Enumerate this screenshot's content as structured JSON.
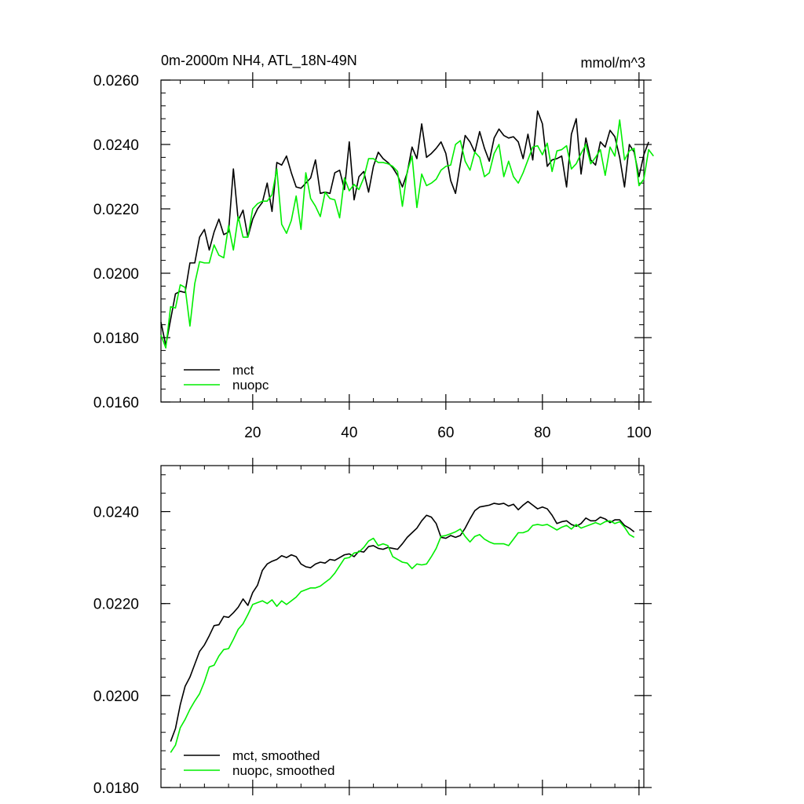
{
  "chart_data": [
    {
      "type": "line",
      "title": "0m-2000m NH4, ATL_18N-49N",
      "units": "mmol/m^3",
      "xlim": [
        1,
        101
      ],
      "ylim": [
        0.016,
        0.026
      ],
      "xticks": [
        20,
        40,
        60,
        80,
        100
      ],
      "xtick_labels": [
        "20",
        "40",
        "60",
        "80",
        "100"
      ],
      "yticks": [
        0.016,
        0.018,
        0.02,
        0.022,
        0.024,
        0.026
      ],
      "ytick_labels": [
        "0.0160",
        "0.0180",
        "0.0200",
        "0.0220",
        "0.0240",
        "0.0260"
      ],
      "grid": false,
      "legend_position": "bottom-left",
      "series": [
        {
          "name": "mct",
          "color": "#000000",
          "x_start": 1,
          "values": [
            0.01848,
            0.01776,
            0.01856,
            0.01936,
            0.01944,
            0.0194,
            0.02032,
            0.02032,
            0.02112,
            0.02136,
            0.02072,
            0.02128,
            0.02168,
            0.0212,
            0.02128,
            0.02324,
            0.02164,
            0.02196,
            0.02112,
            0.02168,
            0.022,
            0.0222,
            0.0228,
            0.02192,
            0.02344,
            0.02336,
            0.02364,
            0.02312,
            0.02268,
            0.02264,
            0.0228,
            0.02296,
            0.02352,
            0.02248,
            0.02252,
            0.02248,
            0.02312,
            0.0232,
            0.0226,
            0.02408,
            0.02228,
            0.023,
            0.02316,
            0.02252,
            0.02332,
            0.02376,
            0.02356,
            0.02344,
            0.02328,
            0.02304,
            0.02268,
            0.02312,
            0.02392,
            0.02356,
            0.02464,
            0.0236,
            0.02372,
            0.02388,
            0.02408,
            0.02372,
            0.02288,
            0.02248,
            0.0234,
            0.02428,
            0.02408,
            0.02376,
            0.0244,
            0.02388,
            0.02348,
            0.0242,
            0.02448,
            0.02428,
            0.0242,
            0.02424,
            0.02408,
            0.02356,
            0.02432,
            0.02352,
            0.02504,
            0.02464,
            0.02332,
            0.02352,
            0.02356,
            0.02364,
            0.02268,
            0.02432,
            0.0248,
            0.02308,
            0.0242,
            0.02352,
            0.02336,
            0.02408,
            0.02392,
            0.02444,
            0.02424,
            0.0236,
            0.02268,
            0.024,
            0.02376,
            0.023,
            0.02368,
            0.02408
          ]
        },
        {
          "name": "nuopc",
          "color": "#00ee00",
          "x_start": 1,
          "values": [
            0.01808,
            0.01768,
            0.01896,
            0.01892,
            0.01964,
            0.01956,
            0.01836,
            0.01968,
            0.02036,
            0.02032,
            0.02032,
            0.02088,
            0.02056,
            0.02048,
            0.02148,
            0.02072,
            0.02176,
            0.02112,
            0.02112,
            0.022,
            0.02216,
            0.02224,
            0.02224,
            0.02244,
            0.02324,
            0.02152,
            0.02124,
            0.02164,
            0.0224,
            0.02136,
            0.02312,
            0.02232,
            0.02208,
            0.02176,
            0.02252,
            0.02232,
            0.02228,
            0.02172,
            0.02296,
            0.02256,
            0.02276,
            0.0226,
            0.02296,
            0.02356,
            0.02356,
            0.02344,
            0.02344,
            0.0234,
            0.02332,
            0.02316,
            0.02208,
            0.02316,
            0.02364,
            0.02204,
            0.02308,
            0.02272,
            0.0228,
            0.02292,
            0.0232,
            0.02332,
            0.02336,
            0.024,
            0.02412,
            0.02348,
            0.0232,
            0.02376,
            0.0236,
            0.023,
            0.02312,
            0.02372,
            0.024,
            0.023,
            0.02348,
            0.023,
            0.0228,
            0.02312,
            0.02352,
            0.02392,
            0.02396,
            0.02368,
            0.02404,
            0.02316,
            0.0238,
            0.02384,
            0.02396,
            0.02324,
            0.0234,
            0.02372,
            0.024,
            0.0234,
            0.0236,
            0.02384,
            0.02304,
            0.02392,
            0.02364,
            0.02476,
            0.02352,
            0.0238,
            0.02388,
            0.02272,
            0.02292,
            0.02384,
            0.02364
          ]
        }
      ]
    },
    {
      "type": "line",
      "xlim": [
        1,
        101
      ],
      "ylim": [
        0.018,
        0.025
      ],
      "xticks": [
        20,
        40,
        60,
        80,
        100
      ],
      "xtick_labels": [],
      "yticks": [
        0.018,
        0.02,
        0.022,
        0.024
      ],
      "ytick_labels": [
        "0.0180",
        "0.0200",
        "0.0220",
        "0.0240"
      ],
      "grid": false,
      "legend_position": "bottom-left",
      "series": [
        {
          "name": "mct, smoothed",
          "color": "#000000",
          "x_start": 3,
          "values": [
            0.019,
            0.01928,
            0.0198,
            0.0202,
            0.0204,
            0.02068,
            0.02096,
            0.0211,
            0.0213,
            0.02152,
            0.02154,
            0.02172,
            0.0217,
            0.0218,
            0.02192,
            0.0221,
            0.02196,
            0.02224,
            0.0224,
            0.02272,
            0.02286,
            0.02292,
            0.02296,
            0.02304,
            0.023,
            0.02306,
            0.02302,
            0.02286,
            0.0228,
            0.02278,
            0.02286,
            0.0229,
            0.02288,
            0.02296,
            0.02294,
            0.023,
            0.02306,
            0.02308,
            0.02302,
            0.02314,
            0.02312,
            0.02324,
            0.02326,
            0.0232,
            0.02318,
            0.02322,
            0.0232,
            0.02318,
            0.0233,
            0.02344,
            0.02354,
            0.02364,
            0.0238,
            0.02392,
            0.02388,
            0.02374,
            0.02344,
            0.02342,
            0.02348,
            0.02344,
            0.02348,
            0.02364,
            0.02384,
            0.02402,
            0.0241,
            0.02412,
            0.02414,
            0.02418,
            0.02416,
            0.02418,
            0.02412,
            0.02416,
            0.02404,
            0.02414,
            0.02422,
            0.02414,
            0.02406,
            0.0241,
            0.02406,
            0.02392,
            0.02374,
            0.02378,
            0.0238,
            0.02372,
            0.02368,
            0.02374,
            0.02386,
            0.0238,
            0.0238,
            0.02388,
            0.02384,
            0.02376,
            0.02382,
            0.02382,
            0.0237,
            0.02364,
            0.02356
          ]
        },
        {
          "name": "nuopc, smoothed",
          "color": "#00ee00",
          "x_start": 3,
          "values": [
            0.01876,
            0.01892,
            0.0193,
            0.01948,
            0.0197,
            0.01988,
            0.02004,
            0.0203,
            0.02062,
            0.02066,
            0.02086,
            0.021,
            0.02102,
            0.02122,
            0.02144,
            0.02156,
            0.02176,
            0.02198,
            0.02202,
            0.02206,
            0.022,
            0.02208,
            0.02194,
            0.02206,
            0.02198,
            0.02206,
            0.02214,
            0.02226,
            0.0223,
            0.02234,
            0.02234,
            0.02238,
            0.02246,
            0.02254,
            0.02266,
            0.02282,
            0.02298,
            0.023,
            0.0231,
            0.02312,
            0.02322,
            0.02336,
            0.02342,
            0.02326,
            0.0233,
            0.02326,
            0.02302,
            0.02296,
            0.0229,
            0.02288,
            0.02276,
            0.02286,
            0.02284,
            0.02286,
            0.02302,
            0.0232,
            0.02346,
            0.02348,
            0.02352,
            0.02356,
            0.02362,
            0.02346,
            0.02334,
            0.02346,
            0.0235,
            0.0234,
            0.02334,
            0.0233,
            0.0233,
            0.0233,
            0.02326,
            0.0234,
            0.02354,
            0.02354,
            0.02358,
            0.0237,
            0.02372,
            0.0237,
            0.02372,
            0.02366,
            0.0236,
            0.02366,
            0.0237,
            0.02362,
            0.02372,
            0.02364,
            0.02368,
            0.02372,
            0.02376,
            0.02372,
            0.02378,
            0.0238,
            0.02374,
            0.02378,
            0.02366,
            0.0235,
            0.02344
          ]
        }
      ]
    }
  ]
}
